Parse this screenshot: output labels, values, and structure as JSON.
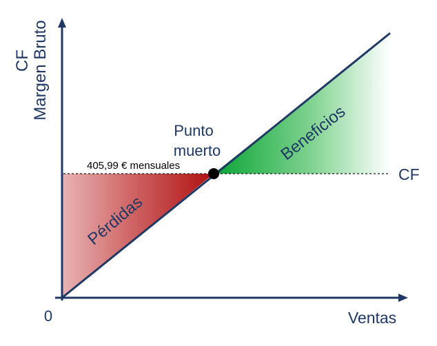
{
  "y_axis_label": {
    "line1": "CF",
    "line2": "Margen Bruto"
  },
  "x_axis_label": "Ventas",
  "origin_label": "0",
  "break_even": {
    "label_line1": "Punto",
    "label_line2": "muerto",
    "amount_label": "405,99 € mensuales"
  },
  "fixed_cost_label": "CF",
  "regions": {
    "loss_label": "Pérdidas",
    "profit_label": "Beneficios"
  },
  "colors": {
    "axis": "#1f3864",
    "loss": "#b01414",
    "profit": "#0da63a"
  }
}
